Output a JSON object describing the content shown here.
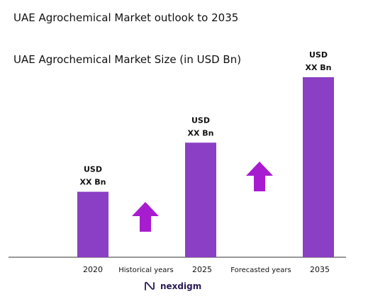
{
  "title": "UAE Agrochemical Market outlook to 2035",
  "chart_data": {
    "type": "bar",
    "title": "UAE Agrochemical Market Size (in USD Bn)",
    "categories": [
      "2020",
      "2025",
      "2035"
    ],
    "values": [
      28,
      49,
      77
    ],
    "data_labels": [
      [
        "USD",
        "XX Bn"
      ],
      [
        "USD",
        "XX Bn"
      ],
      [
        "USD",
        "XX Bn"
      ]
    ],
    "ylim": [
      0,
      100
    ],
    "bar_color": "#8a3fc4",
    "arrow_color": "#a81cd0",
    "arrow_labels": [
      "Historical years",
      "Forecasted years"
    ],
    "grid": false,
    "legend": "none"
  },
  "brand": {
    "name": "nexdigm",
    "icon": "nexdigm-logo-icon"
  }
}
